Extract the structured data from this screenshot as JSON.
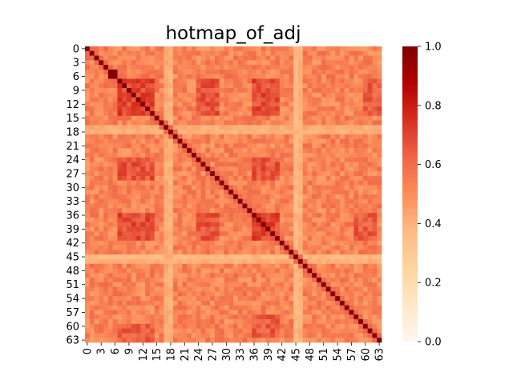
{
  "chart_data": {
    "type": "heatmap",
    "title": "hotmap_of_adj",
    "xlabel": "",
    "ylabel": "",
    "n": 64,
    "x_tick_labels": [
      "0",
      "3",
      "6",
      "9",
      "12",
      "15",
      "18",
      "21",
      "24",
      "27",
      "30",
      "33",
      "36",
      "39",
      "42",
      "45",
      "48",
      "51",
      "54",
      "57",
      "60",
      "63"
    ],
    "y_tick_labels": [
      "0",
      "3",
      "6",
      "9",
      "12",
      "15",
      "18",
      "21",
      "24",
      "27",
      "30",
      "33",
      "36",
      "39",
      "42",
      "45",
      "48",
      "51",
      "54",
      "57",
      "60",
      "63"
    ],
    "colorbar": {
      "colormap": "OrRd",
      "range": [
        0.0,
        1.0
      ],
      "tick_labels": [
        "0.0",
        "0.2",
        "0.4",
        "0.6",
        "0.8",
        "1.0"
      ],
      "stops": [
        {
          "v": 0.0,
          "color": "#fff7ec"
        },
        {
          "v": 0.125,
          "color": "#fee8c8"
        },
        {
          "v": 0.25,
          "color": "#fdd49e"
        },
        {
          "v": 0.375,
          "color": "#fdbb84"
        },
        {
          "v": 0.5,
          "color": "#fc8d59"
        },
        {
          "v": 0.625,
          "color": "#ef6548"
        },
        {
          "v": 0.75,
          "color": "#d7301f"
        },
        {
          "v": 0.875,
          "color": "#b30000"
        },
        {
          "v": 1.0,
          "color": "#7f0000"
        }
      ]
    },
    "diagonal_value": 1.0,
    "typical_value": 0.53,
    "low_rows": [
      {
        "index": 17,
        "value": 0.42
      },
      {
        "index": 18,
        "value": 0.4
      },
      {
        "index": 45,
        "value": 0.38
      },
      {
        "index": 46,
        "value": 0.4
      }
    ],
    "high_blocks": [
      {
        "rows": [
          7,
          14
        ],
        "cols": [
          7,
          14
        ],
        "value": 0.7
      },
      {
        "rows": [
          24,
          28
        ],
        "cols": [
          7,
          14
        ],
        "value": 0.66
      },
      {
        "rows": [
          7,
          14
        ],
        "cols": [
          24,
          28
        ],
        "value": 0.66
      },
      {
        "rows": [
          36,
          41
        ],
        "cols": [
          7,
          14
        ],
        "value": 0.68
      },
      {
        "rows": [
          7,
          14
        ],
        "cols": [
          36,
          41
        ],
        "value": 0.68
      },
      {
        "rows": [
          36,
          41
        ],
        "cols": [
          36,
          41
        ],
        "value": 0.7
      },
      {
        "rows": [
          24,
          28
        ],
        "cols": [
          36,
          41
        ],
        "value": 0.66
      },
      {
        "rows": [
          36,
          41
        ],
        "cols": [
          24,
          28
        ],
        "value": 0.66
      },
      {
        "rows": [
          5,
          6
        ],
        "cols": [
          5,
          6
        ],
        "value": 0.95
      },
      {
        "rows": [
          60,
          63
        ],
        "cols": [
          7,
          14
        ],
        "value": 0.64
      },
      {
        "rows": [
          7,
          14
        ],
        "cols": [
          60,
          63
        ],
        "value": 0.64
      },
      {
        "rows": [
          36,
          41
        ],
        "cols": [
          58,
          62
        ],
        "value": 0.64
      },
      {
        "rows": [
          58,
          62
        ],
        "cols": [
          36,
          41
        ],
        "value": 0.64
      }
    ]
  }
}
